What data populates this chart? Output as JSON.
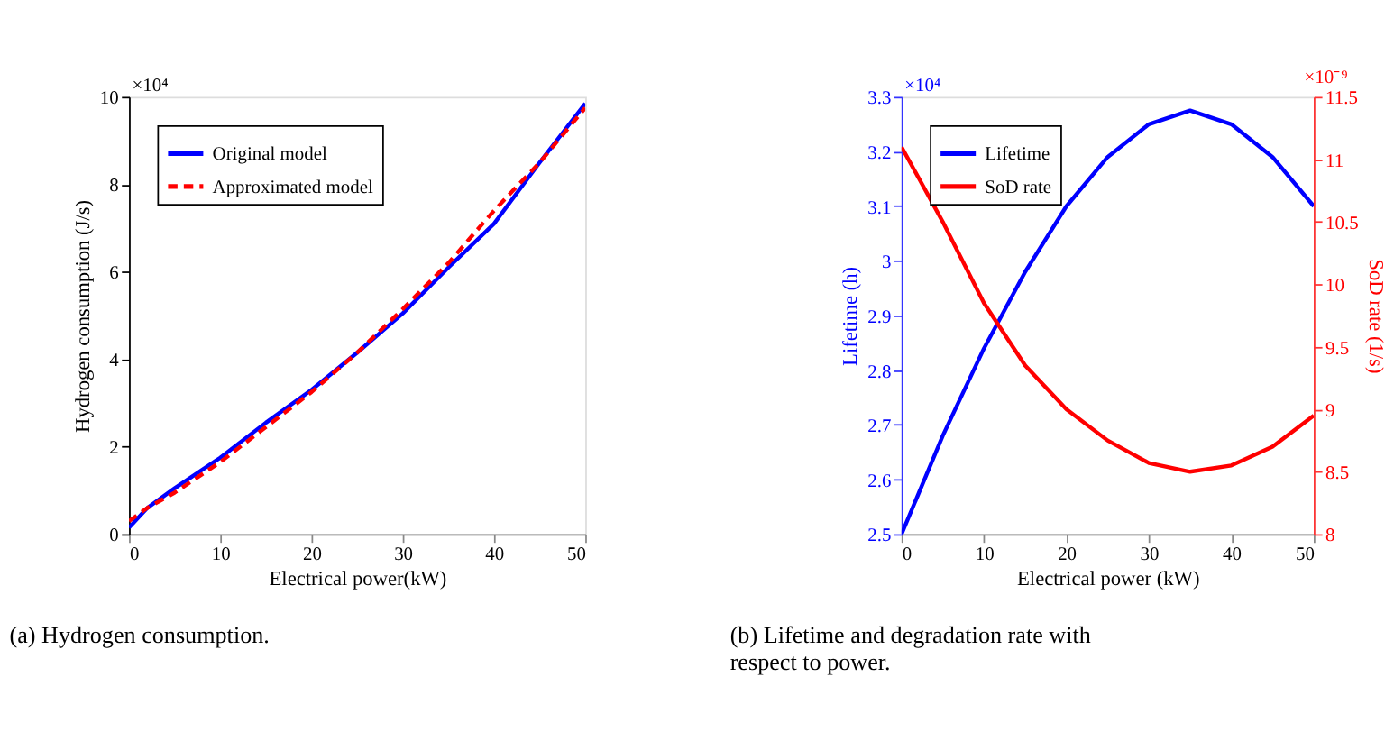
{
  "chart_data": [
    {
      "type": "line",
      "xlabel": "Electrical power(kW)",
      "ylabel": "Hydrogen consumption (J/s)",
      "x": [
        0,
        2,
        5,
        10,
        15,
        20,
        25,
        30,
        35,
        40,
        45,
        50
      ],
      "xlim": [
        0,
        50
      ],
      "xticks": [
        0,
        10,
        20,
        30,
        40,
        50
      ],
      "ylim": [
        0,
        10
      ],
      "yticks": [
        0,
        2,
        4,
        6,
        8,
        10
      ],
      "legend": "top left",
      "grid": false,
      "series": [
        {
          "name": "Original model",
          "color": "#0000ff",
          "line_style": "solid",
          "values": [
            0.15,
            0.6,
            1.05,
            1.75,
            2.55,
            3.3,
            4.15,
            5.05,
            6.1,
            7.1,
            8.5,
            9.85
          ]
        },
        {
          "name": "Approximated model",
          "color": "#ff0000",
          "line_style": "dashed",
          "values": [
            0.3,
            0.6,
            0.95,
            1.65,
            2.45,
            3.25,
            4.15,
            5.15,
            6.2,
            7.4,
            8.5,
            9.75
          ]
        }
      ],
      "annotations": [
        "×10⁴",
        "(a) Hydrogen consumption."
      ]
    },
    {
      "type": "line",
      "xlabel": "Electrical power (kW)",
      "ylabel": "Lifetime (h)",
      "y2label": "SoD rate (1/s)",
      "x": [
        0,
        5,
        10,
        15,
        20,
        25,
        30,
        35,
        40,
        45,
        50
      ],
      "xlim": [
        0,
        50
      ],
      "xticks": [
        0,
        10,
        20,
        30,
        40,
        50
      ],
      "ylim": [
        2.5,
        3.3
      ],
      "yticks": [
        2.5,
        2.6,
        2.7,
        2.8,
        2.9,
        3,
        3.1,
        3.2,
        3.3
      ],
      "y2lim": [
        8,
        11.5
      ],
      "y2ticks": [
        8,
        8.5,
        9,
        9.5,
        10,
        10.5,
        11,
        11.5
      ],
      "legend": "top left",
      "grid": false,
      "series": [
        {
          "name": "Lifetime",
          "color": "#0000ff",
          "line_style": "solid",
          "values": [
            2.5,
            2.68,
            2.84,
            2.98,
            3.1,
            3.19,
            3.25,
            3.275,
            3.25,
            3.19,
            3.1
          ]
        },
        {
          "name": "SoD rate",
          "color": "#ff0000",
          "line_style": "solid",
          "axis": "y2",
          "values": [
            11.1,
            10.5,
            9.85,
            9.35,
            9.0,
            8.75,
            8.57,
            8.5,
            8.55,
            8.7,
            8.95
          ]
        }
      ],
      "annotations": [
        "×10⁴",
        "×10⁻⁹",
        "(b) Lifetime and degradation rate with respect to power."
      ]
    }
  ]
}
